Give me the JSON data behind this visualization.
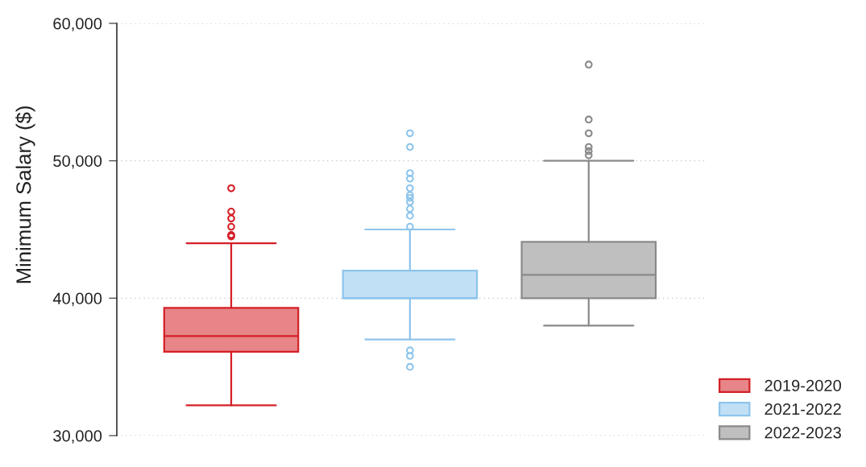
{
  "chart_data": {
    "type": "box",
    "ylabel": "Minimum Salary ($)",
    "categories": [
      null,
      null,
      null
    ],
    "series": [
      {
        "name": "2019-2020",
        "color": "#d42027",
        "boxes": [
          {
            "low": 32200,
            "q1": 36100,
            "median": 37250,
            "q3": 39300,
            "high": 44000,
            "outliers": [
              48000,
              46300,
              45800,
              45200,
              44600,
              44500
            ]
          },
          null,
          null
        ]
      },
      {
        "name": "2021-2022",
        "color": "#8ec5ec",
        "boxes": [
          null,
          {
            "low": 37000,
            "q1": 40000,
            "median": 40000,
            "q3": 42000,
            "high": 45000,
            "outliers": [
              52000,
              51000,
              49100,
              48700,
              48000,
              47500,
              47300,
              47000,
              46500,
              46000,
              45200,
              36200,
              35800,
              35000
            ]
          },
          null
        ]
      },
      {
        "name": "2022-2023",
        "color": "#8a8a8a",
        "boxes": [
          null,
          null,
          {
            "low": 38000,
            "q1": 40000,
            "median": 41700,
            "q3": 44100,
            "high": 50000,
            "outliers": [
              57000,
              53000,
              52000,
              51000,
              50700,
              50400
            ]
          }
        ]
      }
    ],
    "ylim": [
      30000,
      60000
    ],
    "yticks": [
      {
        "value": 30000,
        "label": "30,000"
      },
      {
        "value": 40000,
        "label": "40,000"
      },
      {
        "value": 50000,
        "label": "50,000"
      },
      {
        "value": 60000,
        "label": "60,000"
      }
    ],
    "grid": "y",
    "legend": "bottom right",
    "tick_labels": "y",
    "marker": "circle"
  }
}
